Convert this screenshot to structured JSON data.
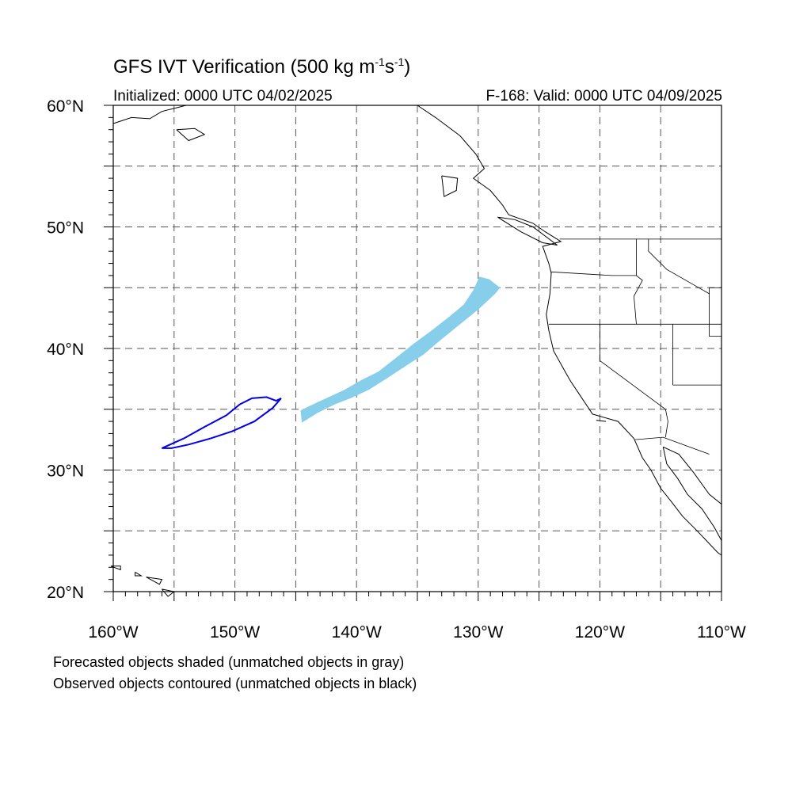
{
  "title": {
    "main": "GFS IVT Verification (500 kg m",
    "exp1": "-1",
    "mid": "s",
    "exp2": "-1",
    "close": ")"
  },
  "subtitle": {
    "left": "Initialized: 0000 UTC 04/02/2025",
    "right": "F-168: Valid: 0000 UTC 04/09/2025"
  },
  "map": {
    "lon_range": [
      -160,
      -110
    ],
    "lat_range": [
      20,
      60
    ],
    "grid_interval_deg": 5,
    "gridlines": "dashed",
    "lon_labels": [
      "160°W",
      "150°W",
      "140°W",
      "130°W",
      "120°W",
      "110°W"
    ],
    "lat_labels": [
      "20°N",
      "30°N",
      "40°N",
      "50°N",
      "60°N"
    ],
    "colors": {
      "forecast_fill": "#87ceeb",
      "observed_contour": "#0000ee",
      "coastline": "#000000",
      "grid": "#555555"
    }
  },
  "objects": {
    "forecast_shaded": {
      "outline_lonlat": [
        [
          -144.6,
          34.9
        ],
        [
          -143.8,
          35.3
        ],
        [
          -142.5,
          35.9
        ],
        [
          -141.0,
          36.6
        ],
        [
          -139.6,
          37.4
        ],
        [
          -138.2,
          38.1
        ],
        [
          -136.8,
          39.2
        ],
        [
          -135.3,
          40.4
        ],
        [
          -133.8,
          41.5
        ],
        [
          -132.4,
          42.6
        ],
        [
          -131.2,
          43.6
        ],
        [
          -130.4,
          44.8
        ],
        [
          -129.9,
          45.9
        ],
        [
          -129.1,
          45.7
        ],
        [
          -128.2,
          45.0
        ],
        [
          -128.6,
          44.5
        ],
        [
          -130.0,
          43.2
        ],
        [
          -131.6,
          41.9
        ],
        [
          -133.2,
          40.6
        ],
        [
          -134.5,
          39.5
        ],
        [
          -135.9,
          38.6
        ],
        [
          -137.4,
          37.6
        ],
        [
          -139.0,
          36.6
        ],
        [
          -140.5,
          35.9
        ],
        [
          -141.8,
          35.4
        ],
        [
          -143.2,
          34.7
        ],
        [
          -144.5,
          33.9
        ],
        [
          -144.6,
          34.9
        ]
      ]
    },
    "observed_contour": {
      "outline_lonlat": [
        [
          -156.0,
          31.8
        ],
        [
          -154.2,
          32.6
        ],
        [
          -152.4,
          33.6
        ],
        [
          -150.7,
          34.5
        ],
        [
          -149.6,
          35.4
        ],
        [
          -148.6,
          35.9
        ],
        [
          -147.4,
          36.0
        ],
        [
          -146.6,
          35.7
        ],
        [
          -146.2,
          35.9
        ],
        [
          -146.9,
          35.1
        ],
        [
          -148.4,
          34.0
        ],
        [
          -150.2,
          33.2
        ],
        [
          -152.0,
          32.6
        ],
        [
          -153.8,
          32.1
        ],
        [
          -155.2,
          31.8
        ],
        [
          -156.0,
          31.8
        ]
      ]
    }
  },
  "coastlines": {
    "north_america_west_coast": [
      [
        -135.0,
        60.0
      ],
      [
        -133.5,
        59.0
      ],
      [
        -131.5,
        57.5
      ],
      [
        -130.2,
        56.0
      ],
      [
        -129.5,
        54.8
      ],
      [
        -130.4,
        54.0
      ],
      [
        -129.0,
        53.0
      ],
      [
        -128.0,
        51.8
      ],
      [
        -127.5,
        51.0
      ],
      [
        -125.5,
        50.3
      ],
      [
        -124.5,
        49.6
      ],
      [
        -123.2,
        48.8
      ],
      [
        -124.7,
        48.4
      ],
      [
        -124.2,
        47.0
      ],
      [
        -124.0,
        46.2
      ],
      [
        -124.1,
        44.5
      ],
      [
        -124.4,
        42.8
      ],
      [
        -124.2,
        41.5
      ],
      [
        -123.8,
        39.8
      ],
      [
        -122.8,
        38.0
      ],
      [
        -122.4,
        37.3
      ],
      [
        -121.8,
        36.4
      ],
      [
        -120.6,
        34.6
      ],
      [
        -118.5,
        34.0
      ],
      [
        -117.2,
        32.6
      ],
      [
        -116.5,
        31.0
      ],
      [
        -115.8,
        30.0
      ],
      [
        -115.0,
        28.5
      ],
      [
        -114.2,
        27.5
      ],
      [
        -113.2,
        26.2
      ],
      [
        -112.0,
        25.0
      ],
      [
        -110.3,
        23.2
      ],
      [
        -110.0,
        23.0
      ]
    ],
    "gulf_of_california": [
      [
        -114.8,
        31.9
      ],
      [
        -114.5,
        30.5
      ],
      [
        -113.6,
        29.3
      ],
      [
        -112.8,
        28.0
      ],
      [
        -111.6,
        26.8
      ],
      [
        -110.6,
        25.3
      ],
      [
        -110.0,
        24.2
      ]
    ],
    "mexico_mainland_coast": [
      [
        -114.8,
        31.9
      ],
      [
        -113.5,
        31.3
      ],
      [
        -112.3,
        29.8
      ],
      [
        -111.0,
        28.0
      ],
      [
        -110.0,
        27.2
      ]
    ],
    "alaska_coast": [
      [
        -160.0,
        58.5
      ],
      [
        -158.5,
        59.0
      ],
      [
        -157.0,
        58.9
      ],
      [
        -156.0,
        59.5
      ],
      [
        -154.0,
        60.0
      ]
    ],
    "kodiak": [
      [
        -154.8,
        58.0
      ],
      [
        -153.3,
        58.1
      ],
      [
        -152.5,
        57.6
      ],
      [
        -153.8,
        57.1
      ],
      [
        -154.8,
        58.0
      ]
    ],
    "haida_gwaii": [
      [
        -133.0,
        54.2
      ],
      [
        -131.7,
        54.0
      ],
      [
        -131.8,
        53.0
      ],
      [
        -132.8,
        52.5
      ],
      [
        -133.0,
        54.2
      ]
    ],
    "vancouver_island": [
      [
        -128.4,
        50.8
      ],
      [
        -127.0,
        50.6
      ],
      [
        -125.5,
        50.0
      ],
      [
        -123.5,
        48.5
      ],
      [
        -124.7,
        48.7
      ],
      [
        -126.5,
        49.6
      ],
      [
        -128.4,
        50.8
      ]
    ],
    "hawaii_1": [
      [
        -160.2,
        22.1
      ],
      [
        -159.4,
        22.1
      ],
      [
        -159.4,
        21.8
      ],
      [
        -160.2,
        22.1
      ]
    ],
    "hawaii_2": [
      [
        -158.2,
        21.6
      ],
      [
        -157.7,
        21.3
      ],
      [
        -158.2,
        21.3
      ],
      [
        -158.2,
        21.6
      ]
    ],
    "hawaii_3": [
      [
        -157.3,
        21.2
      ],
      [
        -156.0,
        21.0
      ],
      [
        -156.2,
        20.6
      ],
      [
        -157.3,
        21.2
      ]
    ],
    "hawaii_4": [
      [
        -156.0,
        20.2
      ],
      [
        -155.0,
        20.0
      ],
      [
        -155.5,
        19.6
      ],
      [
        -156.0,
        20.2
      ]
    ],
    "channel_islands": [
      [
        -120.3,
        34.1
      ],
      [
        -119.5,
        34.0
      ],
      [
        -120.3,
        34.1
      ]
    ]
  },
  "borders": {
    "canada_us": [
      [
        -123.3,
        49.0
      ],
      [
        -110.0,
        49.0
      ]
    ],
    "idaho_wa_or": [
      [
        -117.0,
        49.0
      ],
      [
        -117.0,
        46.0
      ],
      [
        -116.5,
        45.6
      ],
      [
        -117.2,
        44.3
      ],
      [
        -117.0,
        42.0
      ]
    ],
    "or_ca_nv": [
      [
        -124.2,
        42.0
      ],
      [
        -110.0,
        42.0
      ]
    ],
    "wa_or": [
      [
        -124.0,
        46.3
      ],
      [
        -119.0,
        46.0
      ],
      [
        -117.0,
        46.0
      ]
    ],
    "ca_nv": [
      [
        -120.0,
        42.0
      ],
      [
        -120.0,
        39.0
      ],
      [
        -114.6,
        35.0
      ]
    ],
    "ca_az": [
      [
        -114.6,
        35.0
      ],
      [
        -114.4,
        34.0
      ],
      [
        -114.6,
        32.7
      ]
    ],
    "us_mexico": [
      [
        -117.1,
        32.5
      ],
      [
        -114.8,
        32.7
      ],
      [
        -111.0,
        31.3
      ]
    ],
    "nv_ut": [
      [
        -114.0,
        42.0
      ],
      [
        -114.0,
        37.0
      ]
    ],
    "id_mt": [
      [
        -116.0,
        49.0
      ],
      [
        -116.0,
        48.0
      ],
      [
        -114.5,
        46.5
      ],
      [
        -111.0,
        44.5
      ]
    ],
    "ut_az": [
      [
        -114.0,
        37.0
      ],
      [
        -110.0,
        37.0
      ]
    ],
    "az_nm_edge": [
      [
        -111.0,
        45.0
      ],
      [
        -110.0,
        45.0
      ]
    ],
    "wy_edge": [
      [
        -111.0,
        45.0
      ],
      [
        -111.0,
        41.0
      ],
      [
        -110.0,
        41.0
      ]
    ]
  },
  "footer": {
    "line1": "Forecasted objects shaded (unmatched objects in gray)",
    "line2": "Observed objects contoured (unmatched objects in black)"
  }
}
